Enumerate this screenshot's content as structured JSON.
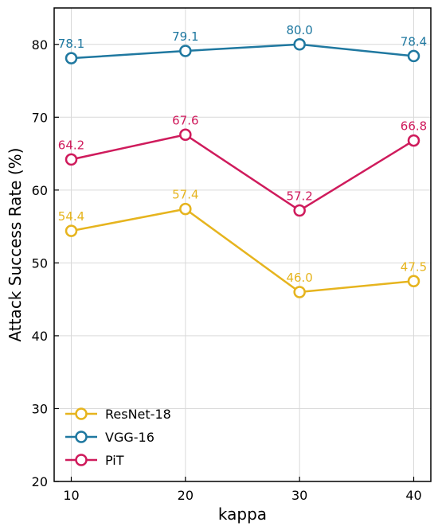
{
  "chart_data": {
    "type": "line",
    "xlabel": "kappa",
    "ylabel": "Attack Success Rate (%)",
    "x": [
      10,
      20,
      30,
      40
    ],
    "xticks": [
      "10",
      "20",
      "30",
      "40"
    ],
    "xlim": [
      8.5,
      41.5
    ],
    "ylim": [
      20,
      85
    ],
    "yticks": [
      "20",
      "30",
      "40",
      "50",
      "60",
      "70",
      "80"
    ],
    "grid": true,
    "legend_position": "bottom-left",
    "series": [
      {
        "name": "ResNet-18",
        "color": "#e6b41e",
        "values": [
          54.4,
          57.4,
          46.0,
          47.5
        ],
        "labels": [
          "54.4",
          "57.4",
          "46.0",
          "47.5"
        ]
      },
      {
        "name": "VGG-16",
        "color": "#1f78a0",
        "values": [
          78.1,
          79.1,
          80.0,
          78.4
        ],
        "labels": [
          "78.1",
          "79.1",
          "80.0",
          "78.4"
        ]
      },
      {
        "name": "PiT",
        "color": "#cf1b5c",
        "values": [
          64.2,
          67.6,
          57.2,
          66.8
        ],
        "labels": [
          "64.2",
          "67.6",
          "57.2",
          "66.8"
        ]
      }
    ]
  }
}
